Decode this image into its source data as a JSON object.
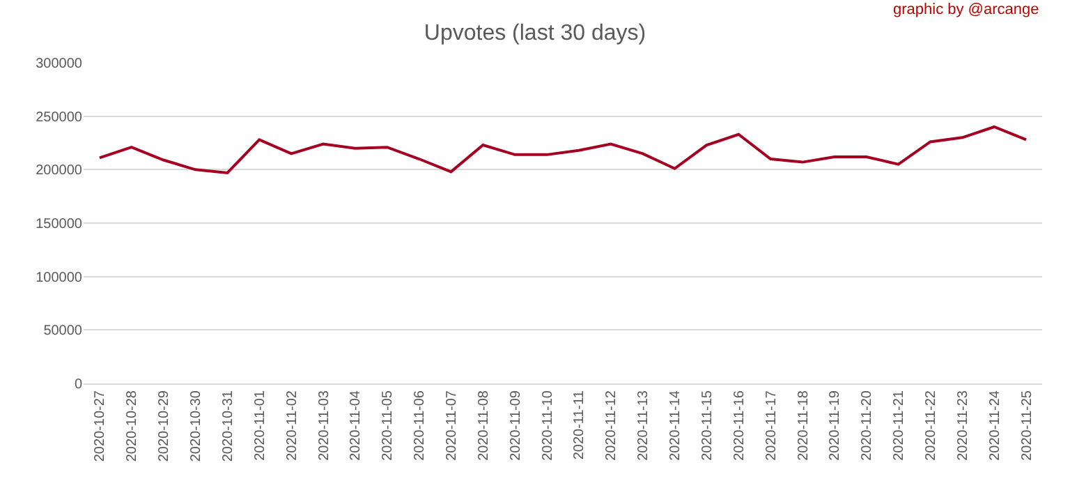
{
  "chart_data": {
    "type": "line",
    "title": "Upvotes (last 30 days)",
    "annotations": [
      "graphic by @arcange"
    ],
    "categories": [
      "2020-10-27",
      "2020-10-28",
      "2020-10-29",
      "2020-10-30",
      "2020-10-31",
      "2020-11-01",
      "2020-11-02",
      "2020-11-03",
      "2020-11-04",
      "2020-11-05",
      "2020-11-06",
      "2020-11-07",
      "2020-11-08",
      "2020-11-09",
      "2020-11-10",
      "2020-11-11",
      "2020-11-12",
      "2020-11-13",
      "2020-11-14",
      "2020-11-15",
      "2020-11-16",
      "2020-11-17",
      "2020-11-18",
      "2020-11-19",
      "2020-11-20",
      "2020-11-21",
      "2020-11-22",
      "2020-11-23",
      "2020-11-24",
      "2020-11-25"
    ],
    "series": [
      {
        "color": "#a50021",
        "values": [
          211000,
          221000,
          209000,
          200000,
          197000,
          228000,
          215000,
          224000,
          220000,
          221000,
          210000,
          198000,
          223000,
          214000,
          214000,
          218000,
          224000,
          215000,
          201000,
          223000,
          233000,
          210000,
          207000,
          212000,
          212000,
          205000,
          226000,
          230000,
          240000,
          228000
        ]
      }
    ],
    "ylim": [
      0,
      300000
    ],
    "yticks": [
      0,
      50000,
      100000,
      150000,
      200000,
      250000,
      300000
    ],
    "grid": "y",
    "marker": "none",
    "line_style": "solid"
  }
}
